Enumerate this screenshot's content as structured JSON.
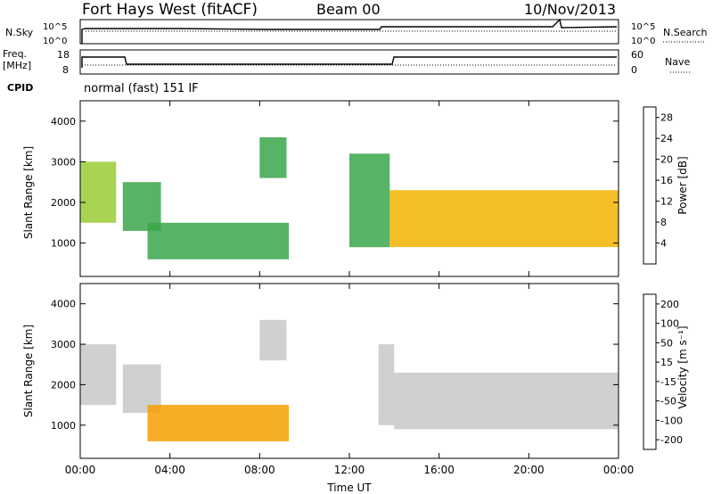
{
  "header": {
    "station": "Fort Hays West (fitACF)",
    "beam": "Beam 00",
    "date": "10/Nov/2013"
  },
  "panels": {
    "sky": {
      "left_label": "N.Sky",
      "right_label": "N.Search",
      "left_ticks": [
        "10^5",
        "10^0"
      ],
      "right_ticks": [
        "10^5",
        "10^0"
      ]
    },
    "freq": {
      "left_label_top": "Freq.",
      "left_label_bottom": "[MHz]",
      "right_label": "Nave",
      "left_ticks": [
        "18",
        "8"
      ],
      "right_ticks": [
        "60",
        "0"
      ]
    },
    "cpid": {
      "label": "CPID",
      "text": "normal (fast) 151 IF"
    }
  },
  "colors": {
    "power_scale": [
      "#0000ff",
      "#1f4fb0",
      "#2f7f7f",
      "#3aa64a",
      "#9acd32",
      "#f2b300",
      "#ff7f00",
      "#ff3300",
      "#ee0000"
    ],
    "velocity_scale": [
      "#1a2bb0",
      "#2b62c8",
      "#2f8f80",
      "#5cbf3a",
      "#c8c8c8",
      "#c8c8c8",
      "#f5a000",
      "#ff6a00",
      "#ff2a00",
      "#e00000"
    ]
  },
  "chart_data": [
    {
      "type": "heatmap",
      "name": "power",
      "title": "",
      "xlabel": "Time UT",
      "ylabel": "Slant Range [km]",
      "xlim": [
        "00:00",
        "24:00"
      ],
      "ylim": [
        180,
        4500
      ],
      "y_ticks": [
        "1000",
        "2000",
        "3000",
        "4000"
      ],
      "colorbar": {
        "label": "Power [dB]",
        "ticks": [
          "4",
          "8",
          "12",
          "16",
          "20",
          "24",
          "28"
        ],
        "range": [
          0,
          30
        ]
      },
      "regions": [
        {
          "t0": 0.0,
          "t1": 1.6,
          "r0": 1500,
          "r1": 3000,
          "value": 14
        },
        {
          "t0": 1.9,
          "t1": 3.6,
          "r0": 1300,
          "r1": 2500,
          "value": 12
        },
        {
          "t0": 3.0,
          "t1": 9.3,
          "r0": 600,
          "r1": 1500,
          "value": 10
        },
        {
          "t0": 8.0,
          "t1": 9.2,
          "r0": 2600,
          "r1": 3600,
          "value": 10
        },
        {
          "t0": 12.0,
          "t1": 13.8,
          "r0": 900,
          "r1": 3200,
          "value": 10
        },
        {
          "t0": 13.8,
          "t1": 24.0,
          "r0": 900,
          "r1": 2300,
          "value": 18
        }
      ]
    },
    {
      "type": "heatmap",
      "name": "velocity",
      "title": "",
      "xlabel": "Time UT",
      "ylabel": "Slant Range [km]",
      "xlim": [
        "00:00",
        "24:00"
      ],
      "ylim": [
        180,
        4500
      ],
      "x_ticks": [
        "00:00",
        "04:00",
        "08:00",
        "12:00",
        "16:00",
        "20:00",
        "00:00"
      ],
      "y_ticks": [
        "1000",
        "2000",
        "3000",
        "4000"
      ],
      "colorbar": {
        "label": "Velocity [m s⁻¹]",
        "ticks": [
          "200",
          "100",
          "50",
          "15",
          "-15",
          "-50",
          "-100",
          "-200"
        ],
        "range": [
          -250,
          250
        ]
      },
      "regions": [
        {
          "t0": 0.0,
          "t1": 1.6,
          "r0": 1500,
          "r1": 3000,
          "value": 0
        },
        {
          "t0": 1.9,
          "t1": 3.6,
          "r0": 1300,
          "r1": 2500,
          "value": 0
        },
        {
          "t0": 3.0,
          "t1": 9.3,
          "r0": 600,
          "r1": 1500,
          "value": -70
        },
        {
          "t0": 8.0,
          "t1": 9.2,
          "r0": 2600,
          "r1": 3600,
          "value": -20
        },
        {
          "t0": 13.3,
          "t1": 14.0,
          "r0": 1000,
          "r1": 3000,
          "value": 40
        },
        {
          "t0": 14.0,
          "t1": 24.0,
          "r0": 900,
          "r1": 2300,
          "value": 0
        }
      ]
    }
  ]
}
